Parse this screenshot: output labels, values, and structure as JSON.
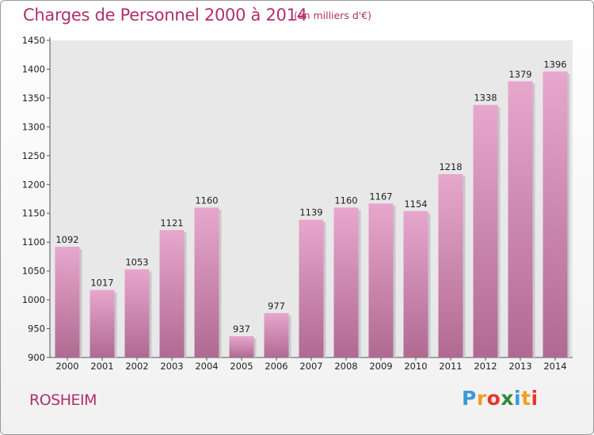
{
  "title": "Charges de Personnel 2000 à 2014",
  "subtitle": "(en milliers d'€)",
  "commune": "ROSHEIM",
  "logo": {
    "letters": [
      "P",
      "r",
      "o",
      "x",
      "i",
      "t",
      "i"
    ],
    "colors": [
      "#3a9ad9",
      "#f0a020",
      "#e8352a",
      "#2e8b3a",
      "#3a9ad9",
      "#f0a020",
      "#e8352a"
    ]
  },
  "colors": {
    "accent": "#b0306a",
    "bar_top": "#e7a7cd",
    "bar_bottom": "#b06a92"
  },
  "chart_data": {
    "type": "bar",
    "categories": [
      "2000",
      "2001",
      "2002",
      "2003",
      "2004",
      "2005",
      "2006",
      "2007",
      "2008",
      "2009",
      "2010",
      "2011",
      "2012",
      "2013",
      "2014"
    ],
    "values": [
      1092,
      1017,
      1053,
      1121,
      1160,
      937,
      977,
      1139,
      1160,
      1167,
      1154,
      1218,
      1338,
      1379,
      1396
    ],
    "value_labels": [
      "1092",
      "1017",
      "1053",
      "1121",
      "1160",
      "937",
      "977",
      "1139",
      "1160",
      "1167",
      "1154",
      "1218",
      "1338",
      "1379",
      "1396"
    ],
    "title": "Charges de Personnel 2000 à 2014",
    "xlabel": "",
    "ylabel": "",
    "ylim": [
      900,
      1450
    ],
    "yticks": [
      900,
      950,
      1000,
      1050,
      1100,
      1150,
      1200,
      1250,
      1300,
      1350,
      1400,
      1450
    ],
    "grid": false,
    "legend": "none"
  }
}
